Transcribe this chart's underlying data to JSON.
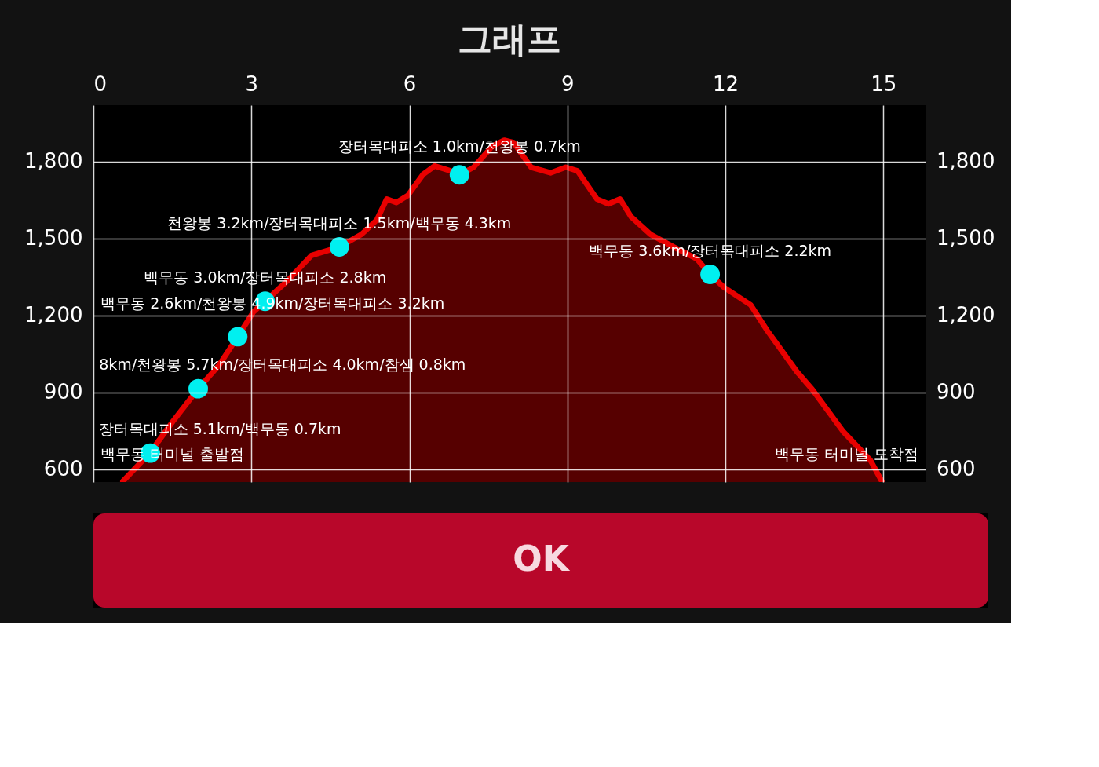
{
  "chart_data": {
    "type": "area",
    "title": "그래프",
    "xlim": [
      0,
      15.8
    ],
    "xticks": [
      0,
      3,
      6,
      9,
      12,
      15
    ],
    "ylim": [
      550,
      2020
    ],
    "yticks": [
      {
        "value": 600,
        "label": "600"
      },
      {
        "value": 900,
        "label": "900"
      },
      {
        "value": 1200,
        "label": "1,200"
      },
      {
        "value": 1500,
        "label": "1,500"
      },
      {
        "value": 1800,
        "label": "1,800"
      }
    ],
    "y2lim": [
      550,
      2020
    ],
    "y2ticks": [
      {
        "value": 600,
        "label": "600"
      },
      {
        "value": 900,
        "label": "900"
      },
      {
        "value": 1200,
        "label": "1,200"
      },
      {
        "value": 1500,
        "label": "1,500"
      },
      {
        "value": 1800,
        "label": "1,800"
      }
    ],
    "grid": true,
    "series": [
      {
        "color": "#e80000",
        "x": [
          0.56,
          1.07,
          1.51,
          1.99,
          2.39,
          2.74,
          3.04,
          3.26,
          3.7,
          4.14,
          4.67,
          5.09,
          5.38,
          5.57,
          5.75,
          5.97,
          6.26,
          6.48,
          6.78,
          6.95,
          7.22,
          7.58,
          7.8,
          7.98,
          8.31,
          8.68,
          8.97,
          9.19,
          9.56,
          9.78,
          10.0,
          10.21,
          10.58,
          11.02,
          11.46,
          11.71,
          11.97,
          12.48,
          12.78,
          13.36,
          13.65,
          14.24,
          14.75,
          14.97
        ],
        "values": [
          553,
          663,
          787,
          914,
          1007,
          1117,
          1214,
          1255,
          1338,
          1434,
          1467,
          1516,
          1572,
          1654,
          1640,
          1668,
          1750,
          1783,
          1764,
          1748,
          1778,
          1861,
          1883,
          1874,
          1778,
          1756,
          1778,
          1764,
          1654,
          1635,
          1654,
          1585,
          1516,
          1467,
          1420,
          1360,
          1310,
          1241,
          1145,
          980,
          911,
          746,
          636,
          553
        ]
      },
      {
        "type": "scatter",
        "color": "#00f0f0",
        "marker": "circle",
        "x": [
          1.08,
          1.99,
          2.74,
          3.26,
          4.67,
          6.95,
          11.71
        ],
        "values": [
          663,
          914,
          1117,
          1255,
          1467,
          1748,
          1360
        ]
      }
    ],
    "annotations": [
      {
        "text": "백무동 터미널 출발점",
        "x": 0.56,
        "y": 553
      },
      {
        "text": "장터목대피소 5.1km/백무동 0.7km",
        "x": 1.08,
        "y": 663
      },
      {
        "text": "8km/천왕봉 5.7km/장터목대피소 4.0km/참샘 0.8km",
        "x": 1.99,
        "y": 914
      },
      {
        "text": "백무동 2.6km/천왕봉 4.9km/장터목대피소 3.2km",
        "x": 2.74,
        "y": 1117
      },
      {
        "text": "백무동 3.0km/장터목대피소 2.8km",
        "x": 3.26,
        "y": 1255
      },
      {
        "text": "천왕봉 3.2km/장터목대피소 1.5km/백무동 4.3km",
        "x": 4.67,
        "y": 1467
      },
      {
        "text": "장터목대피소 1.0km/천왕봉 0.7km",
        "x": 6.95,
        "y": 1748
      },
      {
        "text": "백무동 3.6km/장터목대피소 2.2km",
        "x": 11.71,
        "y": 1360
      },
      {
        "text": "백무동 터미널 도착점",
        "x": 14.97,
        "y": 553
      },
      "OK"
    ]
  }
}
